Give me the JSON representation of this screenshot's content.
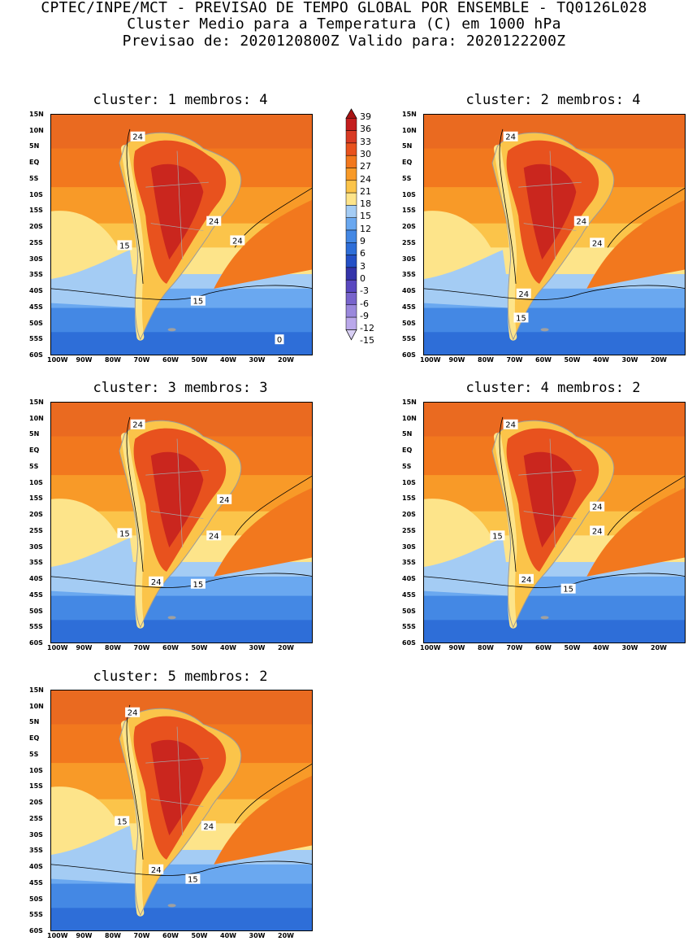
{
  "header": {
    "line1": "CPTEC/INPE/MCT - PREVISAO DE TEMPO GLOBAL POR ENSEMBLE - TQ0126L028",
    "line2": "Cluster Medio para a Temperatura (C) em 1000 hPa",
    "line3": "Previsao de: 2020120800Z   Valido para: 2020122200Z"
  },
  "panels": [
    {
      "title": "cluster: 1   membros: 4",
      "labels": [
        "24",
        "24",
        "24",
        "15",
        "15",
        "0"
      ]
    },
    {
      "title": "cluster: 2   membros: 4",
      "labels": [
        "24",
        "24",
        "24",
        "24",
        "15"
      ]
    },
    {
      "title": "cluster: 3   membros: 3",
      "labels": [
        "24",
        "24",
        "24",
        "15",
        "24",
        "15"
      ]
    },
    {
      "title": "cluster: 4   membros: 2",
      "labels": [
        "24",
        "24",
        "24",
        "15",
        "24",
        "15"
      ]
    },
    {
      "title": "cluster: 5   membros: 2",
      "labels": [
        "24",
        "24",
        "15",
        "24",
        "15"
      ]
    }
  ],
  "axes": {
    "lat_ticks": [
      "15N",
      "10N",
      "5N",
      "EQ",
      "5S",
      "10S",
      "15S",
      "20S",
      "25S",
      "30S",
      "35S",
      "40S",
      "45S",
      "50S",
      "55S",
      "60S"
    ],
    "lon_ticks": [
      "100W",
      "90W",
      "80W",
      "70W",
      "60W",
      "50W",
      "40W",
      "30W",
      "20W"
    ]
  },
  "colorbar": {
    "labels": [
      "39",
      "36",
      "33",
      "30",
      "27",
      "24",
      "21",
      "18",
      "15",
      "12",
      "9",
      "6",
      "3",
      "0",
      "-3",
      "-6",
      "-9",
      "-12",
      "-15"
    ],
    "colors": [
      "#a81414",
      "#c41e1e",
      "#d83a24",
      "#e8521e",
      "#f2781e",
      "#f89a28",
      "#fbc44a",
      "#fde48a",
      "#a4ccf4",
      "#6aa8f0",
      "#4488e4",
      "#2e6ed8",
      "#2450c6",
      "#3434aa",
      "#5a48c0",
      "#7864cc",
      "#9a88dc",
      "#baa8ea",
      "#d8cff4"
    ]
  }
}
